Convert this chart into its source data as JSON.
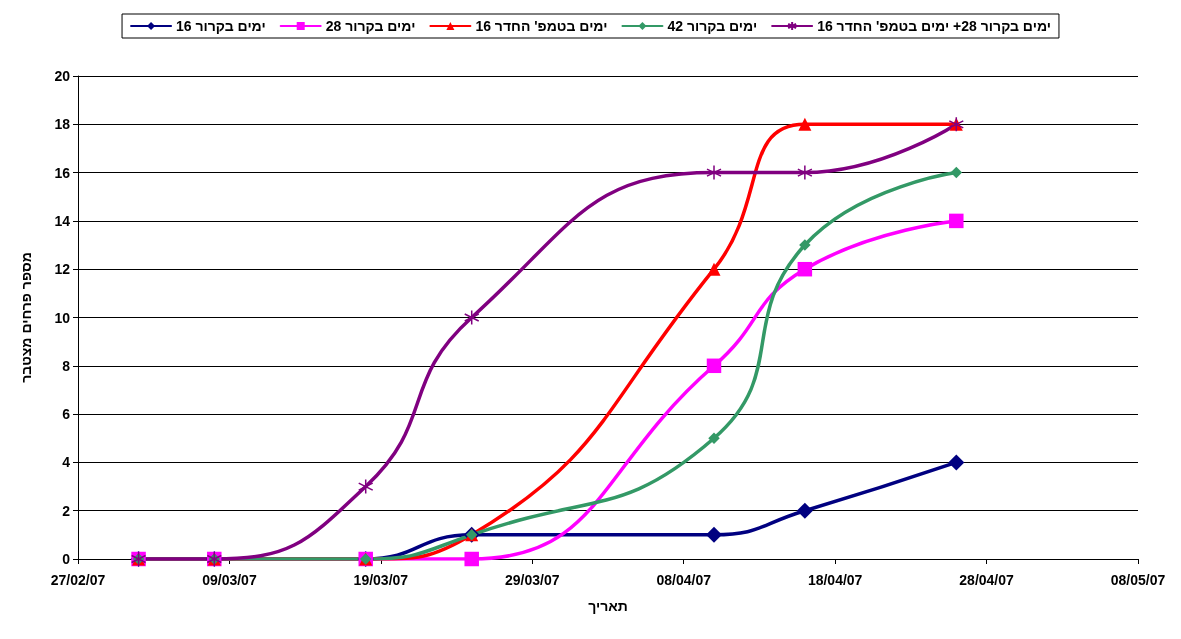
{
  "chart_data": {
    "type": "line",
    "xlabel": "תאריך",
    "ylabel": "מספר פרחים מצטבר",
    "x": [
      "--03-03",
      "--03-08",
      "--03-18",
      "--03-25",
      "--04-10",
      "--04-16",
      "--04-26"
    ],
    "series": [
      {
        "name": "16 ימים בקרור",
        "color": "#000080",
        "marker": "diamond",
        "values": [
          0,
          0,
          0,
          1,
          1,
          2,
          4
        ]
      },
      {
        "name": "28 ימים בקרור",
        "color": "#ff00ff",
        "marker": "square",
        "values": [
          0,
          0,
          0,
          0,
          8,
          12,
          14
        ]
      },
      {
        "name": "16 ימים בטמפ' החדר",
        "color": "#ff0000",
        "marker": "triangle",
        "values": [
          0,
          0,
          0,
          1,
          12,
          18,
          18
        ]
      },
      {
        "name": "42 ימים בקרור",
        "color": "#339966",
        "marker": "diamond",
        "values": [
          0,
          0,
          0,
          1,
          5,
          13,
          16
        ]
      },
      {
        "name": "16 ימים בקרור 28+ ימים בטמפ' החדר",
        "color": "#800080",
        "marker": "cross",
        "values": [
          0,
          0,
          3,
          10,
          16,
          16,
          18
        ]
      }
    ],
    "xlim": [
      "--02-27",
      "--05-08"
    ],
    "xticks": [
      {
        "value": "--02-27",
        "label": "27/02/07"
      },
      {
        "value": "--03-09",
        "label": "09/03/07"
      },
      {
        "value": "--03-19",
        "label": "19/03/07"
      },
      {
        "value": "--03-29",
        "label": "29/03/07"
      },
      {
        "value": "--04-08",
        "label": "08/04/07"
      },
      {
        "value": "--04-18",
        "label": "18/04/07"
      },
      {
        "value": "--04-28",
        "label": "28/04/07"
      },
      {
        "value": "--05-08",
        "label": "08/05/07"
      }
    ],
    "ylim": [
      0,
      20
    ],
    "yticks": [
      0,
      2,
      4,
      6,
      8,
      10,
      12,
      14,
      16,
      18,
      20
    ],
    "grid": "y",
    "legend": "top",
    "line_style": "solid"
  }
}
